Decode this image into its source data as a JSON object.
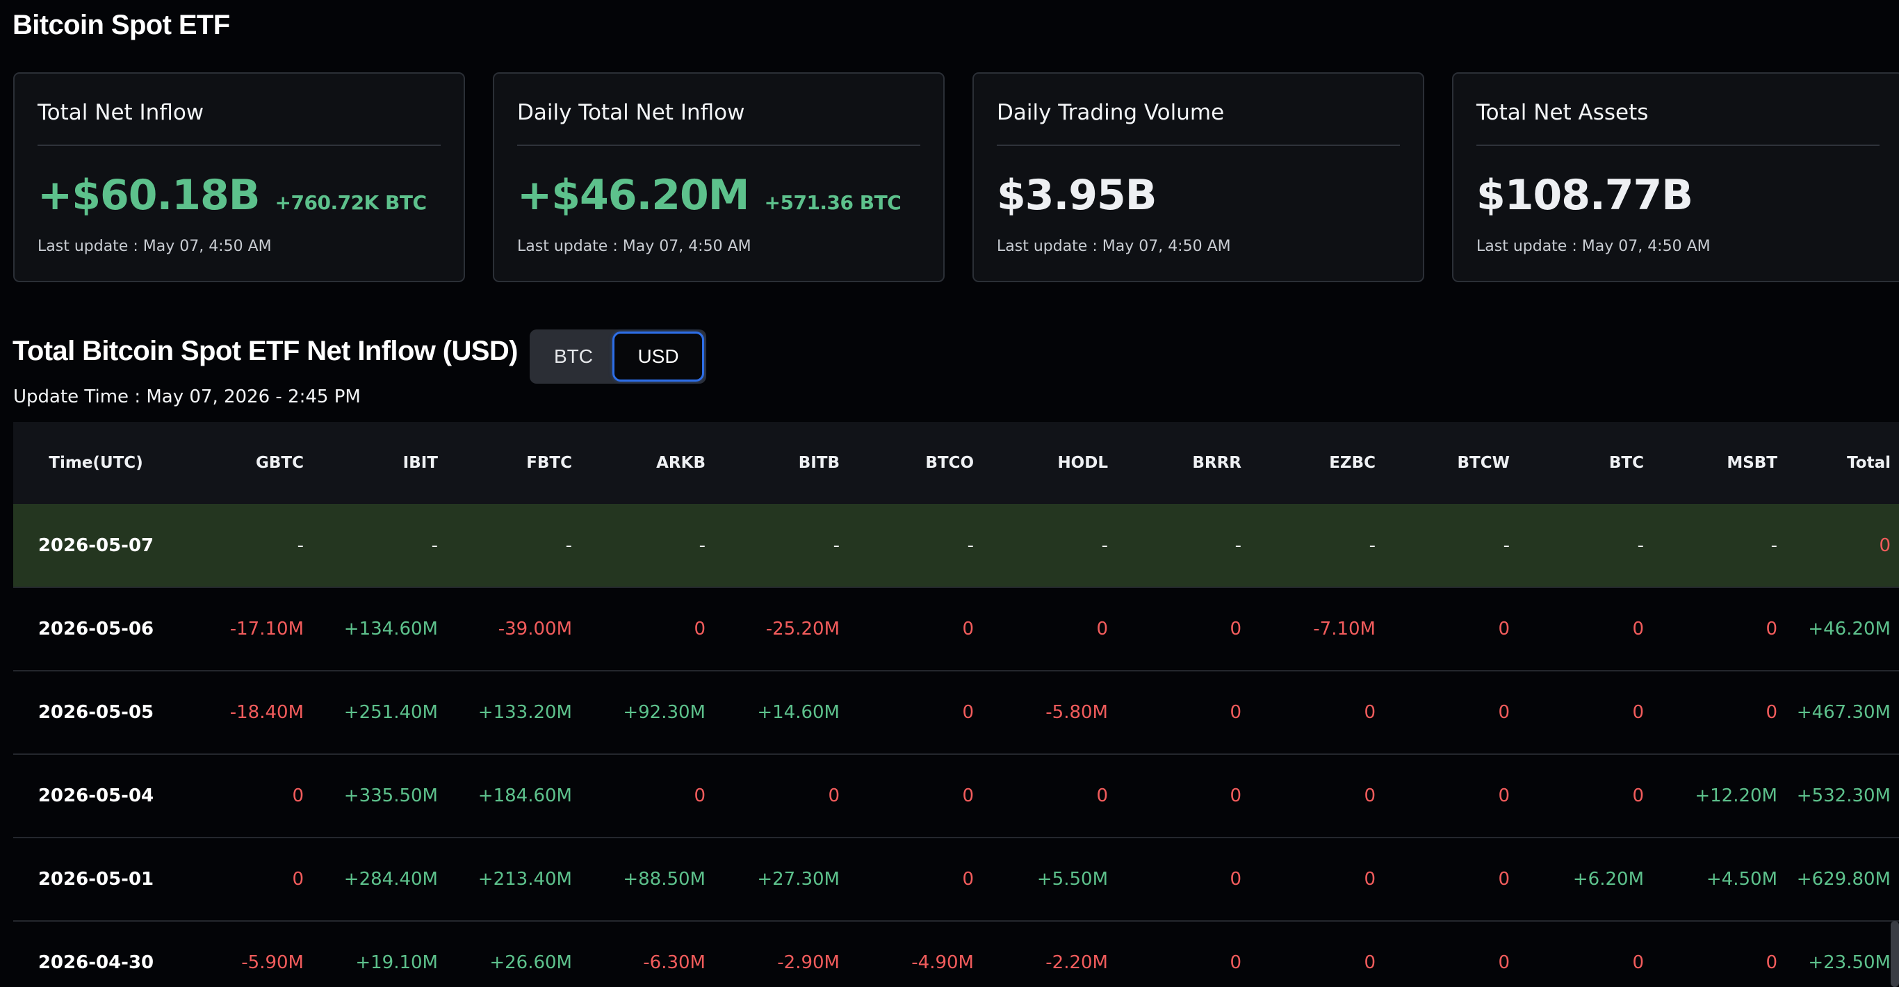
{
  "page": {
    "title": "Bitcoin Spot ETF"
  },
  "cards": [
    {
      "title": "Total Net Inflow",
      "value": "+$60.18B",
      "value_tone": "positive",
      "sub": "+760.72K BTC",
      "sub_tone": "positive",
      "update": "Last update : May 07, 4:50 AM"
    },
    {
      "title": "Daily Total Net Inflow",
      "value": "+$46.20M",
      "value_tone": "positive",
      "sub": "+571.36 BTC",
      "sub_tone": "positive",
      "update": "Last update : May 07, 4:50 AM"
    },
    {
      "title": "Daily Trading Volume",
      "value": "$3.95B",
      "value_tone": "neutral",
      "sub": "",
      "sub_tone": "neutral",
      "update": "Last update : May 07, 4:50 AM"
    },
    {
      "title": "Total Net Assets",
      "value": "$108.77B",
      "value_tone": "neutral",
      "sub": "",
      "sub_tone": "neutral",
      "update": "Last update : May 07, 4:50 AM"
    }
  ],
  "section": {
    "title": "Total Bitcoin Spot ETF Net Inflow (USD)",
    "toggle": {
      "btc_label": "BTC",
      "usd_label": "USD",
      "selected": "USD"
    },
    "update_time": "Update Time : May 07, 2026 - 2:45 PM"
  },
  "table": {
    "columns": [
      "Time(UTC)",
      "GBTC",
      "IBIT",
      "FBTC",
      "ARKB",
      "BITB",
      "BTCO",
      "HODL",
      "BRRR",
      "EZBC",
      "BTCW",
      "BTC",
      "MSBT",
      "Total"
    ],
    "rows": [
      {
        "highlight": true,
        "cells": [
          "2026-05-07",
          "-",
          "-",
          "-",
          "-",
          "-",
          "-",
          "-",
          "-",
          "-",
          "-",
          "-",
          "-",
          "0"
        ]
      },
      {
        "highlight": false,
        "cells": [
          "2026-05-06",
          "-17.10M",
          "+134.60M",
          "-39.00M",
          "0",
          "-25.20M",
          "0",
          "0",
          "0",
          "-7.10M",
          "0",
          "0",
          "0",
          "+46.20M"
        ]
      },
      {
        "highlight": false,
        "cells": [
          "2026-05-05",
          "-18.40M",
          "+251.40M",
          "+133.20M",
          "+92.30M",
          "+14.60M",
          "0",
          "-5.80M",
          "0",
          "0",
          "0",
          "0",
          "0",
          "+467.30M"
        ]
      },
      {
        "highlight": false,
        "cells": [
          "2026-05-04",
          "0",
          "+335.50M",
          "+184.60M",
          "0",
          "0",
          "0",
          "0",
          "0",
          "0",
          "0",
          "0",
          "+12.20M",
          "+532.30M"
        ]
      },
      {
        "highlight": false,
        "cells": [
          "2026-05-01",
          "0",
          "+284.40M",
          "+213.40M",
          "+88.50M",
          "+27.30M",
          "0",
          "+5.50M",
          "0",
          "0",
          "0",
          "+6.20M",
          "+4.50M",
          "+629.80M"
        ]
      },
      {
        "highlight": false,
        "cells": [
          "2026-04-30",
          "-5.90M",
          "+19.10M",
          "+26.60M",
          "-6.30M",
          "-2.90M",
          "-4.90M",
          "-2.20M",
          "0",
          "0",
          "0",
          "0",
          "0",
          "+23.50M"
        ]
      }
    ]
  },
  "colors": {
    "positive": "#5dc18c",
    "negative": "#f25c5c",
    "highlight_row": "#243620",
    "toggle_focus": "#2d6ee8"
  }
}
